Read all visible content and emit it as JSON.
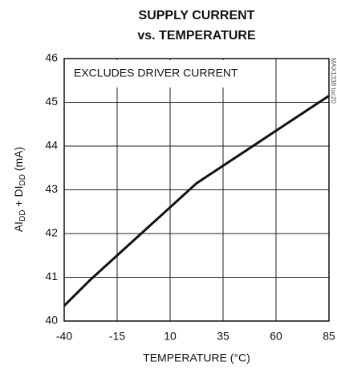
{
  "chart_data": {
    "type": "line",
    "title": "SUPPLY CURRENT",
    "subtitle": "vs. TEMPERATURE",
    "x_label": "TEMPERATURE (°C)",
    "y_label_parts": [
      "AI",
      "DD",
      " + DI",
      "DD",
      " (mA)"
    ],
    "annotation": "EXCLUDES DRIVER CURRENT",
    "watermark": "MAX1338 toc20",
    "x": [
      -40,
      -27.5,
      -15,
      -2.5,
      10,
      22.5,
      35,
      47.5,
      60,
      72.5,
      85
    ],
    "series": [
      {
        "name": "supply current",
        "color": "#111111",
        "values": [
          40.35,
          40.95,
          41.5,
          42.05,
          42.6,
          43.15,
          43.55,
          43.95,
          44.35,
          44.75,
          45.15
        ]
      }
    ],
    "xlim": [
      -40,
      85
    ],
    "xticks": [
      -40,
      -15,
      10,
      35,
      60,
      85
    ],
    "ylim": [
      40,
      46
    ],
    "yticks": [
      40,
      41,
      42,
      43,
      44,
      45,
      46
    ],
    "grid": true
  }
}
